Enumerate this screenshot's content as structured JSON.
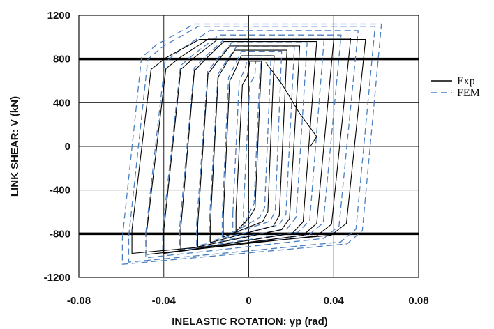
{
  "chart_data": {
    "type": "line",
    "xlabel": "INELASTIC ROTATION: γp (rad)",
    "ylabel": "LINK SHEAR: V (kN)",
    "xlim": [
      -0.08,
      0.08
    ],
    "ylim": [
      -1200,
      1200
    ],
    "xticks": [
      -0.08,
      -0.04,
      0,
      0.04,
      0.08
    ],
    "xtick_labels": [
      "-0.08",
      "-0.04",
      "0",
      "0.04",
      "0.08"
    ],
    "yticks": [
      -1200,
      -800,
      -400,
      0,
      400,
      800,
      1200
    ],
    "ytick_labels": [
      "-1200",
      "-800",
      "-400",
      "0",
      "400",
      "800",
      "1200"
    ],
    "grid": true,
    "legend_position": "right",
    "reference_lines": [
      800,
      -800
    ],
    "colors": {
      "exp": "#000000",
      "fem": "#4a7fc1",
      "reference": "#000000"
    },
    "series": [
      {
        "name": "Exp",
        "style": "solid",
        "loops": [
          {
            "amplitude": 0.006,
            "vmax": 780
          },
          {
            "amplitude": 0.012,
            "vmax": 830
          },
          {
            "amplitude": 0.018,
            "vmax": 880
          },
          {
            "amplitude": 0.024,
            "vmax": 920
          },
          {
            "amplitude": 0.032,
            "vmax": 960
          },
          {
            "amplitude": 0.04,
            "vmax": 980
          },
          {
            "amplitude": 0.048,
            "vmax": 990
          },
          {
            "amplitude": 0.055,
            "vmax": 980
          }
        ],
        "extra_path": {
          "x": [
            0.008,
            0.016,
            0.024,
            0.032,
            0.029
          ],
          "y": [
            770,
            560,
            300,
            90,
            0
          ]
        }
      },
      {
        "name": "FEM",
        "style": "dashed",
        "loops": [
          {
            "amplitude": 0.004,
            "vmax": 760
          },
          {
            "amplitude": 0.009,
            "vmax": 810
          },
          {
            "amplitude": 0.014,
            "vmax": 850
          },
          {
            "amplitude": 0.02,
            "vmax": 890
          },
          {
            "amplitude": 0.026,
            "vmax": 930
          },
          {
            "amplitude": 0.034,
            "vmax": 970
          },
          {
            "amplitude": 0.042,
            "vmax": 1000
          },
          {
            "amplitude": 0.05,
            "vmax": 1040
          },
          {
            "amplitude": 0.058,
            "vmax": 1080
          },
          {
            "amplitude": 0.061,
            "vmax": 1100
          }
        ]
      }
    ]
  }
}
